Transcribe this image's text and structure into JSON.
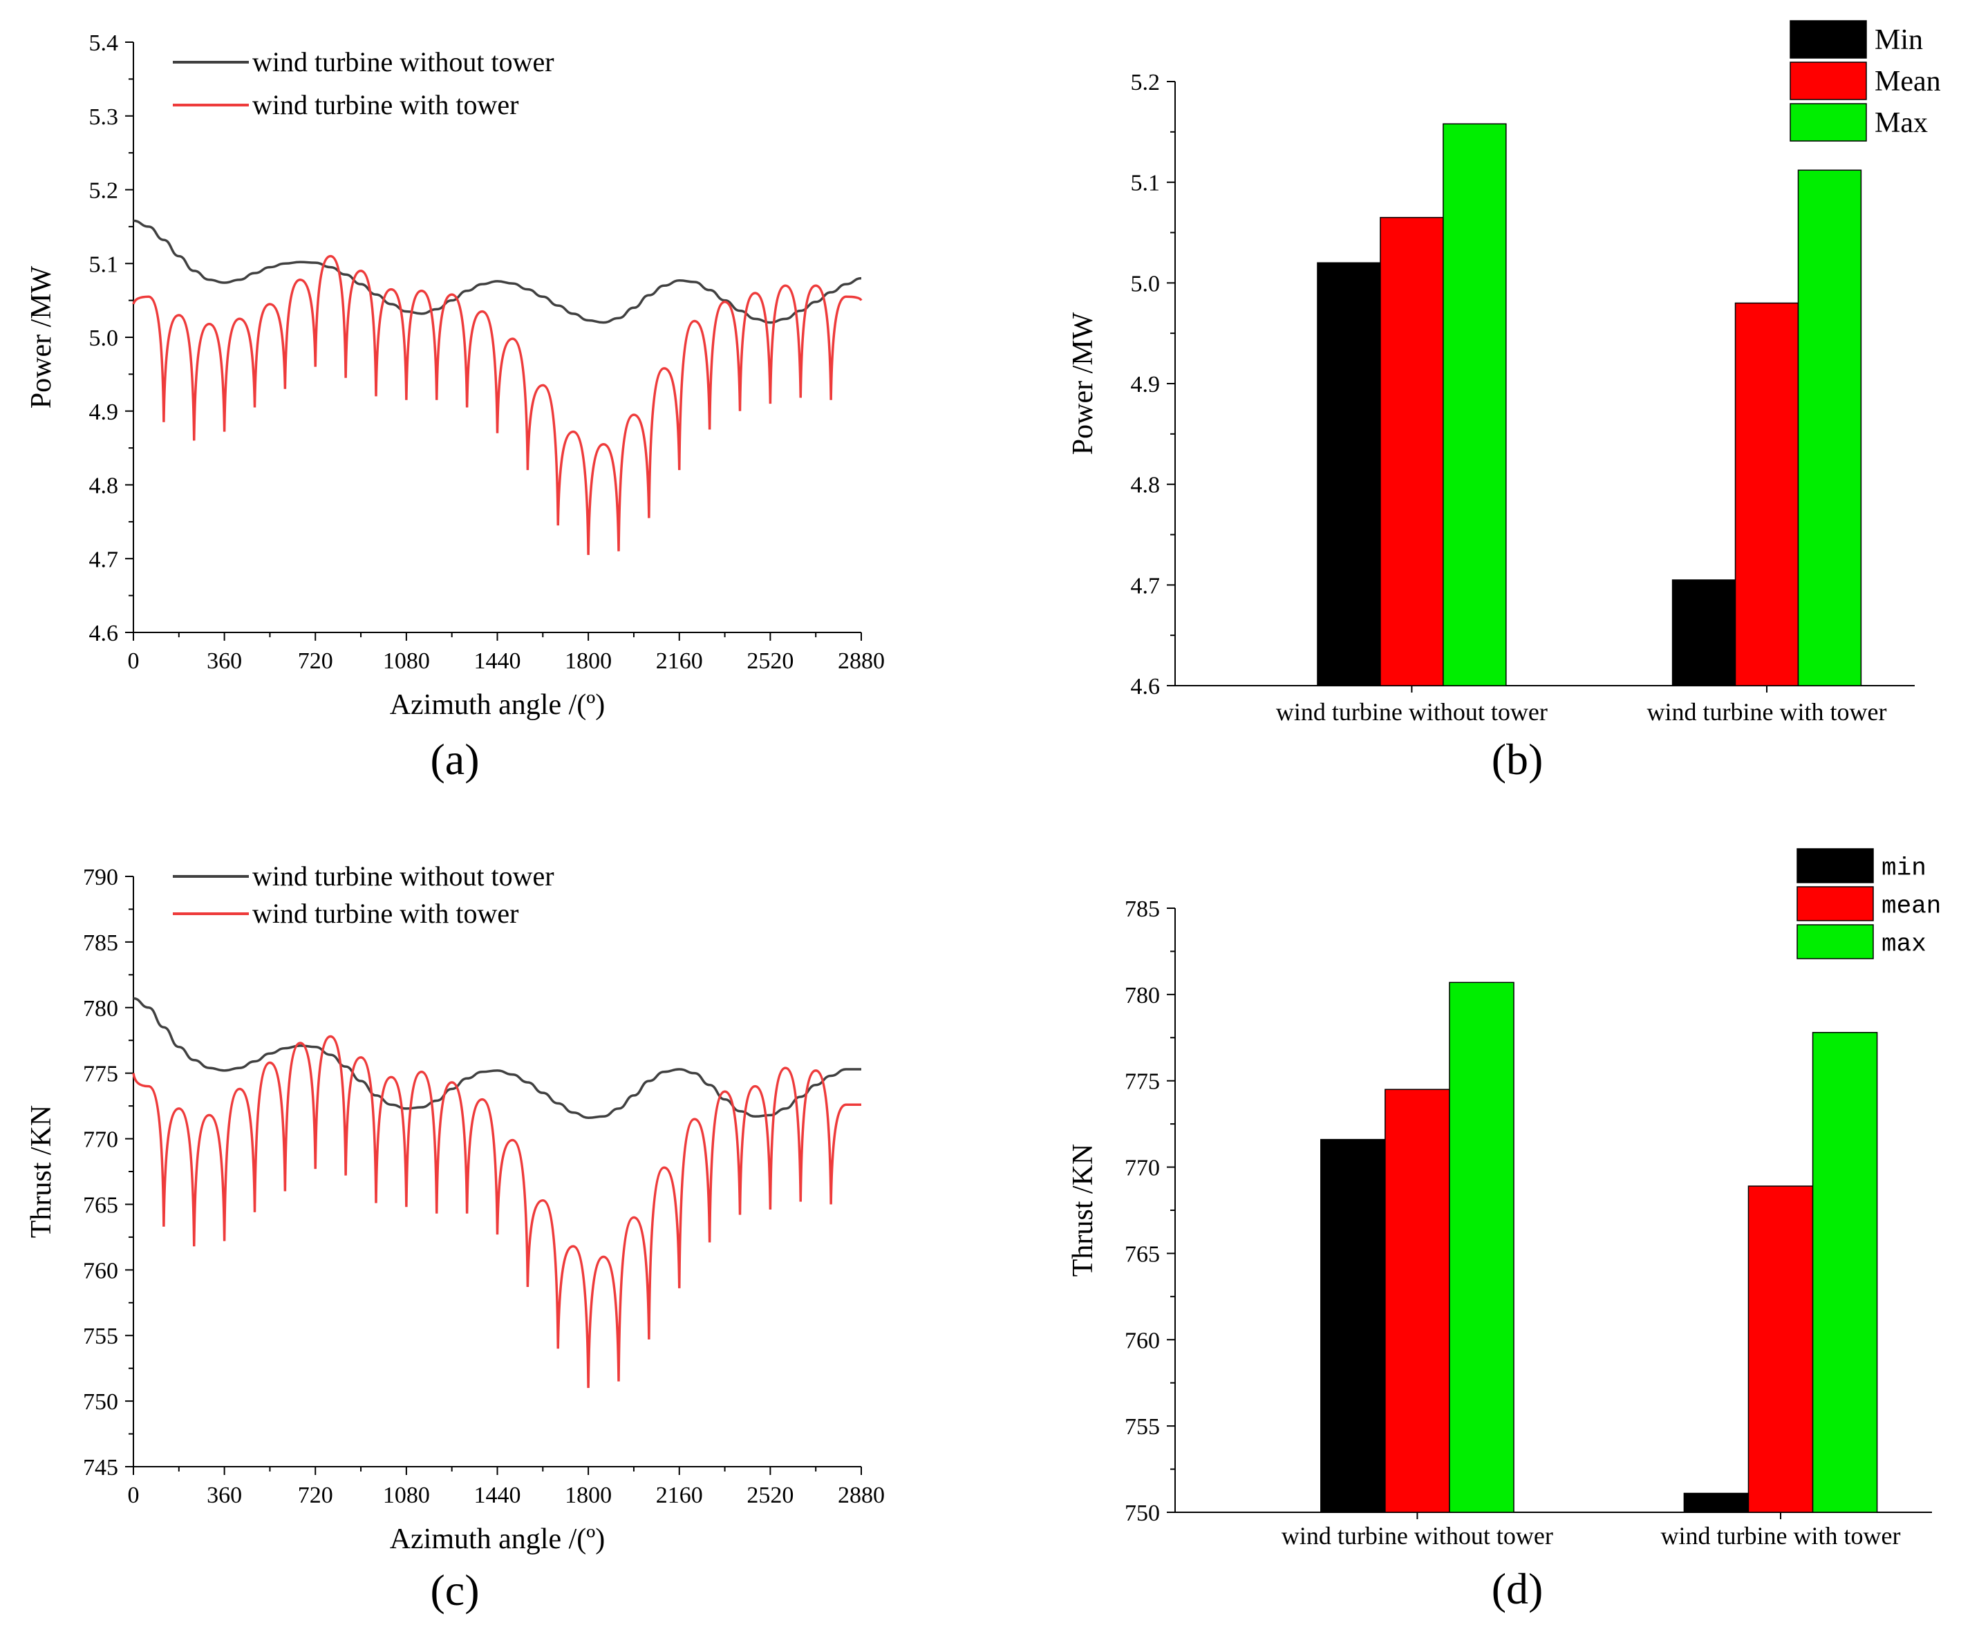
{
  "panels": [
    {
      "id": "a",
      "panel_label": "(a)",
      "chart_data": {
        "type": "line",
        "xlabel": "Azimuth angle /(º)",
        "ylabel": "Power /MW",
        "xlim": [
          0,
          2880
        ],
        "ylim": [
          4.6,
          5.4
        ],
        "xticks": [
          0,
          360,
          720,
          1080,
          1440,
          1800,
          2160,
          2520,
          2880
        ],
        "yticks": [
          4.6,
          4.7,
          4.8,
          4.9,
          5.0,
          5.1,
          5.2,
          5.3,
          5.4
        ],
        "ytick_labels": [
          "4.6",
          "4.7",
          "4.8",
          "4.9",
          "5.0",
          "5.1",
          "5.2",
          "5.3",
          "5.4"
        ],
        "legend": [
          "wind turbine without tower",
          "wind turbine with tower"
        ],
        "series": [
          {
            "name": "wind turbine without tower",
            "color": "#404040",
            "x": [
              0,
              60,
              120,
              180,
              240,
              300,
              360,
              420,
              480,
              540,
              600,
              660,
              720,
              780,
              840,
              900,
              960,
              1020,
              1080,
              1140,
              1200,
              1260,
              1320,
              1380,
              1440,
              1500,
              1560,
              1620,
              1680,
              1740,
              1800,
              1860,
              1920,
              1980,
              2040,
              2100,
              2160,
              2220,
              2280,
              2340,
              2400,
              2460,
              2520,
              2580,
              2640,
              2700,
              2760,
              2820,
              2880
            ],
            "values": [
              5.158,
              5.15,
              5.132,
              5.11,
              5.09,
              5.078,
              5.074,
              5.078,
              5.087,
              5.095,
              5.1,
              5.102,
              5.101,
              5.095,
              5.085,
              5.072,
              5.058,
              5.045,
              5.035,
              5.032,
              5.038,
              5.05,
              5.063,
              5.072,
              5.076,
              5.073,
              5.065,
              5.055,
              5.043,
              5.032,
              5.023,
              5.02,
              5.026,
              5.04,
              5.057,
              5.07,
              5.077,
              5.075,
              5.064,
              5.05,
              5.036,
              5.025,
              5.02,
              5.025,
              5.036,
              5.048,
              5.061,
              5.072,
              5.08
            ]
          },
          {
            "name": "wind turbine with tower",
            "color": "#ee3b3b",
            "shape": "periodic cusps (tower passage), period 120 deg",
            "crest_x": [
              60,
              180,
              300,
              420,
              540,
              660,
              780,
              900,
              1020,
              1140,
              1260,
              1380,
              1500,
              1620,
              1740,
              1860,
              1980,
              2100,
              2220,
              2340,
              2460,
              2580,
              2700,
              2820
            ],
            "crest_values": [
              5.055,
              5.03,
              5.018,
              5.025,
              5.045,
              5.078,
              5.11,
              5.09,
              5.065,
              5.063,
              5.058,
              5.035,
              4.998,
              4.935,
              4.872,
              4.855,
              4.895,
              4.958,
              5.022,
              5.048,
              5.06,
              5.07,
              5.07,
              5.055
            ],
            "dip_x": [
              0,
              120,
              240,
              360,
              480,
              600,
              720,
              840,
              960,
              1080,
              1200,
              1320,
              1440,
              1560,
              1680,
              1800,
              1920,
              2040,
              2160,
              2280,
              2400,
              2520,
              2640,
              2760,
              2880
            ],
            "dip_values": [
              5.045,
              4.885,
              4.86,
              4.872,
              4.905,
              4.93,
              4.96,
              4.945,
              4.92,
              4.915,
              4.915,
              4.905,
              4.87,
              4.82,
              4.745,
              4.705,
              4.71,
              4.755,
              4.82,
              4.875,
              4.9,
              4.91,
              4.918,
              4.915,
              5.05
            ]
          }
        ]
      }
    },
    {
      "id": "b",
      "panel_label": "(b)",
      "chart_data": {
        "type": "bar",
        "ylabel": "Power /MW",
        "ylim": [
          4.6,
          5.2
        ],
        "yticks": [
          4.6,
          4.7,
          4.8,
          4.9,
          5.0,
          5.1,
          5.2
        ],
        "ytick_labels": [
          "4.6",
          "4.7",
          "4.8",
          "4.9",
          "5.0",
          "5.1",
          "5.2"
        ],
        "categories": [
          "wind turbine without tower",
          "wind turbine with tower"
        ],
        "series": [
          {
            "name": "Min",
            "color": "#000000",
            "values": [
              5.02,
              4.705
            ]
          },
          {
            "name": "Mean",
            "color": "#ff0000",
            "values": [
              5.065,
              4.98
            ]
          },
          {
            "name": "Max",
            "color": "#00ee00",
            "values": [
              5.158,
              5.112
            ]
          }
        ],
        "legend_position": "top-right"
      }
    },
    {
      "id": "c",
      "panel_label": "(c)",
      "chart_data": {
        "type": "line",
        "xlabel": "Azimuth angle /(º)",
        "ylabel": "Thrust /KN",
        "xlim": [
          0,
          2880
        ],
        "ylim": [
          745,
          790
        ],
        "xticks": [
          0,
          360,
          720,
          1080,
          1440,
          1800,
          2160,
          2520,
          2880
        ],
        "yticks": [
          745,
          750,
          755,
          760,
          765,
          770,
          775,
          780,
          785,
          790
        ],
        "ytick_labels": [
          "745",
          "750",
          "755",
          "760",
          "765",
          "770",
          "775",
          "780",
          "785",
          "790"
        ],
        "legend": [
          "wind turbine without tower",
          "wind turbine with tower"
        ],
        "series": [
          {
            "name": "wind turbine without tower",
            "color": "#404040",
            "x": [
              0,
              60,
              120,
              180,
              240,
              300,
              360,
              420,
              480,
              540,
              600,
              660,
              720,
              780,
              840,
              900,
              960,
              1020,
              1080,
              1140,
              1200,
              1260,
              1320,
              1380,
              1440,
              1500,
              1560,
              1620,
              1680,
              1740,
              1800,
              1860,
              1920,
              1980,
              2040,
              2100,
              2160,
              2220,
              2280,
              2340,
              2400,
              2460,
              2520,
              2580,
              2640,
              2700,
              2760,
              2820,
              2880
            ],
            "values": [
              780.7,
              780.0,
              778.5,
              777.0,
              776.0,
              775.4,
              775.2,
              775.4,
              775.9,
              776.5,
              776.9,
              777.1,
              777.0,
              776.4,
              775.5,
              774.4,
              773.3,
              772.6,
              772.3,
              772.4,
              772.9,
              773.8,
              774.6,
              775.1,
              775.2,
              774.9,
              774.3,
              773.5,
              772.7,
              772.0,
              771.6,
              771.7,
              772.3,
              773.3,
              774.4,
              775.1,
              775.3,
              775.0,
              774.1,
              773.0,
              772.1,
              771.7,
              771.8,
              772.3,
              773.2,
              774.1,
              774.8,
              775.3,
              775.3
            ]
          },
          {
            "name": "wind turbine with tower",
            "color": "#ee3b3b",
            "shape": "periodic cusps (tower passage), period 120 deg",
            "crest_x": [
              60,
              180,
              300,
              420,
              540,
              660,
              780,
              900,
              1020,
              1140,
              1260,
              1380,
              1500,
              1620,
              1740,
              1860,
              1980,
              2100,
              2220,
              2340,
              2460,
              2580,
              2700,
              2820
            ],
            "crest_values": [
              774.0,
              772.3,
              771.8,
              773.8,
              775.8,
              777.3,
              777.8,
              776.2,
              774.7,
              775.1,
              774.3,
              773.0,
              769.9,
              765.3,
              761.8,
              761.0,
              764.0,
              767.8,
              771.5,
              773.6,
              774.0,
              775.4,
              775.2,
              772.6
            ],
            "dip_x": [
              0,
              120,
              240,
              360,
              480,
              600,
              720,
              840,
              960,
              1080,
              1200,
              1320,
              1440,
              1560,
              1680,
              1800,
              1920,
              2040,
              2160,
              2280,
              2400,
              2520,
              2640,
              2760,
              2880
            ],
            "dip_values": [
              775.0,
              763.3,
              761.8,
              762.2,
              764.4,
              766.0,
              767.7,
              767.2,
              765.1,
              764.8,
              764.3,
              764.3,
              762.7,
              758.7,
              754.0,
              751.0,
              751.5,
              754.7,
              758.6,
              762.1,
              764.2,
              764.6,
              765.2,
              765.0,
              772.6
            ]
          }
        ]
      }
    },
    {
      "id": "d",
      "panel_label": "(d)",
      "chart_data": {
        "type": "bar",
        "ylabel": "Thrust /KN",
        "ylim": [
          750,
          785
        ],
        "yticks": [
          750,
          755,
          760,
          765,
          770,
          775,
          780,
          785
        ],
        "ytick_labels": [
          "750",
          "755",
          "760",
          "765",
          "770",
          "775",
          "780",
          "785"
        ],
        "categories": [
          "wind turbine without tower",
          "wind turbine with tower"
        ],
        "series": [
          {
            "name": "min",
            "color": "#000000",
            "values": [
              771.6,
              751.1
            ]
          },
          {
            "name": "mean",
            "color": "#ff0000",
            "values": [
              774.5,
              768.9
            ]
          },
          {
            "name": "max",
            "color": "#00ee00",
            "values": [
              780.7,
              777.8
            ]
          }
        ],
        "legend_position": "top-right"
      }
    }
  ]
}
